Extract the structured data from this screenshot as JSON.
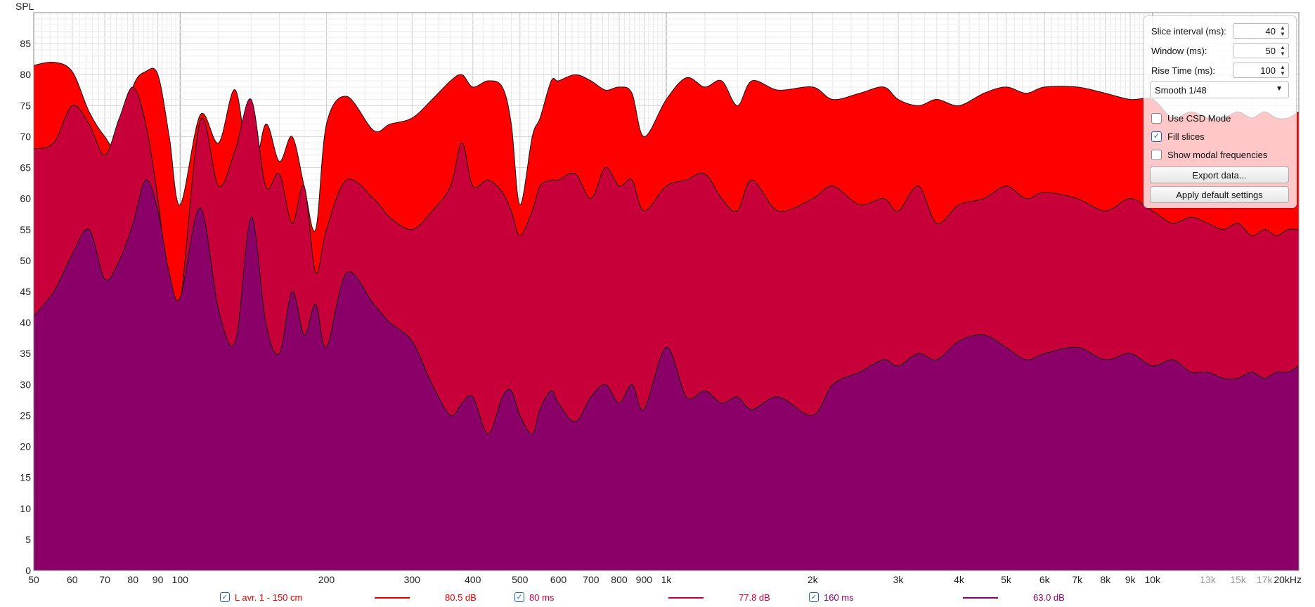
{
  "chart_data": {
    "type": "area",
    "title": "",
    "ylabel": "SPL",
    "xlabel": "",
    "xscale": "log",
    "xlim": [
      50,
      20000
    ],
    "ylim": [
      0,
      90
    ],
    "grid": true,
    "xticks": [
      {
        "v": 50,
        "label": "50"
      },
      {
        "v": 60,
        "label": "60"
      },
      {
        "v": 70,
        "label": "70"
      },
      {
        "v": 80,
        "label": "80"
      },
      {
        "v": 90,
        "label": "90"
      },
      {
        "v": 100,
        "label": "100"
      },
      {
        "v": 200,
        "label": "200"
      },
      {
        "v": 300,
        "label": "300"
      },
      {
        "v": 400,
        "label": "400"
      },
      {
        "v": 500,
        "label": "500"
      },
      {
        "v": 600,
        "label": "600"
      },
      {
        "v": 700,
        "label": "700"
      },
      {
        "v": 800,
        "label": "800"
      },
      {
        "v": 900,
        "label": "900"
      },
      {
        "v": 1000,
        "label": "1k"
      },
      {
        "v": 2000,
        "label": "2k"
      },
      {
        "v": 3000,
        "label": "3k"
      },
      {
        "v": 4000,
        "label": "4k"
      },
      {
        "v": 5000,
        "label": "5k"
      },
      {
        "v": 6000,
        "label": "6k"
      },
      {
        "v": 7000,
        "label": "7k"
      },
      {
        "v": 8000,
        "label": "8k"
      },
      {
        "v": 9000,
        "label": "9k"
      },
      {
        "v": 10000,
        "label": "10k"
      },
      {
        "v": 13000,
        "label": "13k",
        "dim": true
      },
      {
        "v": 15000,
        "label": "15k",
        "dim": true
      },
      {
        "v": 17000,
        "label": "17k",
        "dim": true
      },
      {
        "v": 20000,
        "label": "20kHz"
      }
    ],
    "yticks": [
      0,
      5,
      10,
      15,
      20,
      25,
      30,
      35,
      40,
      45,
      50,
      55,
      60,
      65,
      70,
      75,
      80,
      85
    ],
    "series": [
      {
        "name": "L avr. 1 - 150 cm",
        "color": "#ff0000",
        "x": [
          50,
          55,
          60,
          65,
          70,
          75,
          80,
          85,
          90,
          95,
          100,
          110,
          120,
          130,
          140,
          150,
          160,
          170,
          180,
          190,
          200,
          220,
          250,
          270,
          300,
          330,
          360,
          380,
          400,
          430,
          460,
          480,
          500,
          530,
          550,
          580,
          600,
          650,
          700,
          750,
          800,
          850,
          900,
          1000,
          1100,
          1200,
          1300,
          1400,
          1500,
          1700,
          2000,
          2200,
          2500,
          2800,
          3000,
          3300,
          3600,
          4000,
          4500,
          5000,
          5500,
          6000,
          7000,
          8000,
          9000,
          10000,
          11000,
          12000,
          13000,
          14000,
          15000,
          16000,
          17000,
          18000,
          19000,
          20000
        ],
        "y": [
          81.5,
          82,
          80.5,
          74,
          70,
          68,
          78,
          80.5,
          80,
          70,
          59,
          73.5,
          69,
          77.5,
          63,
          72,
          66,
          70,
          62,
          55,
          72,
          76.5,
          71,
          72,
          73,
          76,
          79,
          80,
          78,
          79,
          78,
          72,
          59,
          70,
          73,
          79,
          79,
          80,
          79,
          77.5,
          78,
          77,
          70,
          76,
          79.5,
          78,
          79,
          75,
          79,
          77.5,
          78,
          76,
          77,
          78,
          76,
          75,
          76,
          75,
          77,
          78,
          77,
          78,
          78,
          77,
          76,
          76,
          73,
          74,
          73,
          73,
          74,
          73,
          74,
          73,
          73,
          74
        ]
      },
      {
        "name": "80 ms",
        "color": "#c8003a",
        "x": [
          50,
          55,
          60,
          65,
          70,
          75,
          80,
          85,
          90,
          95,
          100,
          110,
          120,
          130,
          140,
          150,
          160,
          170,
          180,
          190,
          200,
          220,
          250,
          270,
          300,
          330,
          360,
          380,
          400,
          430,
          460,
          480,
          500,
          530,
          550,
          580,
          600,
          650,
          700,
          750,
          800,
          850,
          900,
          1000,
          1100,
          1200,
          1300,
          1400,
          1500,
          1700,
          2000,
          2200,
          2500,
          2800,
          3000,
          3300,
          3600,
          4000,
          4500,
          5000,
          5500,
          6000,
          7000,
          8000,
          9000,
          10000,
          11000,
          12000,
          13000,
          14000,
          15000,
          16000,
          17000,
          18000,
          19000,
          20000
        ],
        "y": [
          68,
          69,
          75,
          72,
          67,
          73,
          78,
          72,
          60,
          45,
          43,
          72.5,
          62,
          68,
          76,
          62,
          64,
          56,
          62,
          48,
          55,
          63,
          60,
          57,
          55,
          58,
          62,
          69,
          62,
          63,
          61,
          58,
          54,
          58,
          62,
          63,
          63,
          64,
          60,
          65,
          62,
          63,
          58,
          62,
          63,
          64,
          60,
          58,
          63,
          58,
          60,
          62,
          59,
          60,
          58,
          62,
          56,
          59,
          60,
          62,
          60,
          61,
          60,
          58,
          60,
          58,
          56,
          57,
          56,
          55,
          56,
          54,
          55,
          54,
          55,
          55
        ]
      },
      {
        "name": "160 ms",
        "color": "#8a0068",
        "x": [
          50,
          55,
          60,
          65,
          70,
          75,
          80,
          85,
          90,
          95,
          100,
          110,
          120,
          130,
          140,
          150,
          160,
          170,
          180,
          190,
          200,
          220,
          250,
          270,
          300,
          330,
          360,
          380,
          400,
          430,
          460,
          480,
          500,
          530,
          550,
          580,
          600,
          650,
          700,
          750,
          800,
          850,
          900,
          1000,
          1100,
          1200,
          1300,
          1400,
          1500,
          1700,
          2000,
          2200,
          2500,
          2800,
          3000,
          3300,
          3600,
          4000,
          4500,
          5000,
          5500,
          6000,
          7000,
          8000,
          9000,
          10000,
          11000,
          12000,
          13000,
          14000,
          15000,
          16000,
          17000,
          18000,
          19000,
          20000
        ],
        "y": [
          41,
          45,
          51,
          55,
          47,
          50,
          56,
          63,
          58,
          48,
          44,
          58.5,
          42,
          37,
          57,
          40,
          35,
          45,
          38,
          43,
          36,
          48,
          43,
          40,
          37,
          30,
          25,
          27,
          28,
          22,
          28,
          29,
          25,
          22,
          26,
          29,
          27,
          24,
          28,
          30,
          27,
          30,
          26,
          36,
          28,
          29,
          27,
          28,
          26,
          28,
          25,
          30,
          32,
          34,
          33,
          35,
          34,
          37,
          38,
          36,
          34,
          35,
          36,
          34,
          35,
          33,
          34,
          32,
          32,
          31,
          31,
          32,
          31,
          32,
          32,
          33
        ]
      }
    ]
  },
  "legend": [
    {
      "checked": true,
      "name": "L avr. 1 - 150 cm",
      "value": "80.5 dB",
      "color": "#e00000"
    },
    {
      "checked": true,
      "name": "80 ms",
      "value": "77.8 dB",
      "color": "#c8003a"
    },
    {
      "checked": true,
      "name": "160 ms",
      "value": "63.0 dB",
      "color": "#8a0068"
    }
  ],
  "settings": {
    "slice_interval_label": "Slice interval (ms):",
    "slice_interval_value": "40",
    "window_label": "Window (ms):",
    "window_value": "50",
    "rise_time_label": "Rise Time (ms):",
    "rise_time_value": "100",
    "smoothing": "Smooth 1/48",
    "use_csd_label": "Use CSD Mode",
    "use_csd_checked": false,
    "fill_slices_label": "Fill slices",
    "fill_slices_checked": true,
    "show_modal_label": "Show modal frequencies",
    "show_modal_checked": false,
    "export_label": "Export data...",
    "apply_default_label": "Apply default settings"
  }
}
